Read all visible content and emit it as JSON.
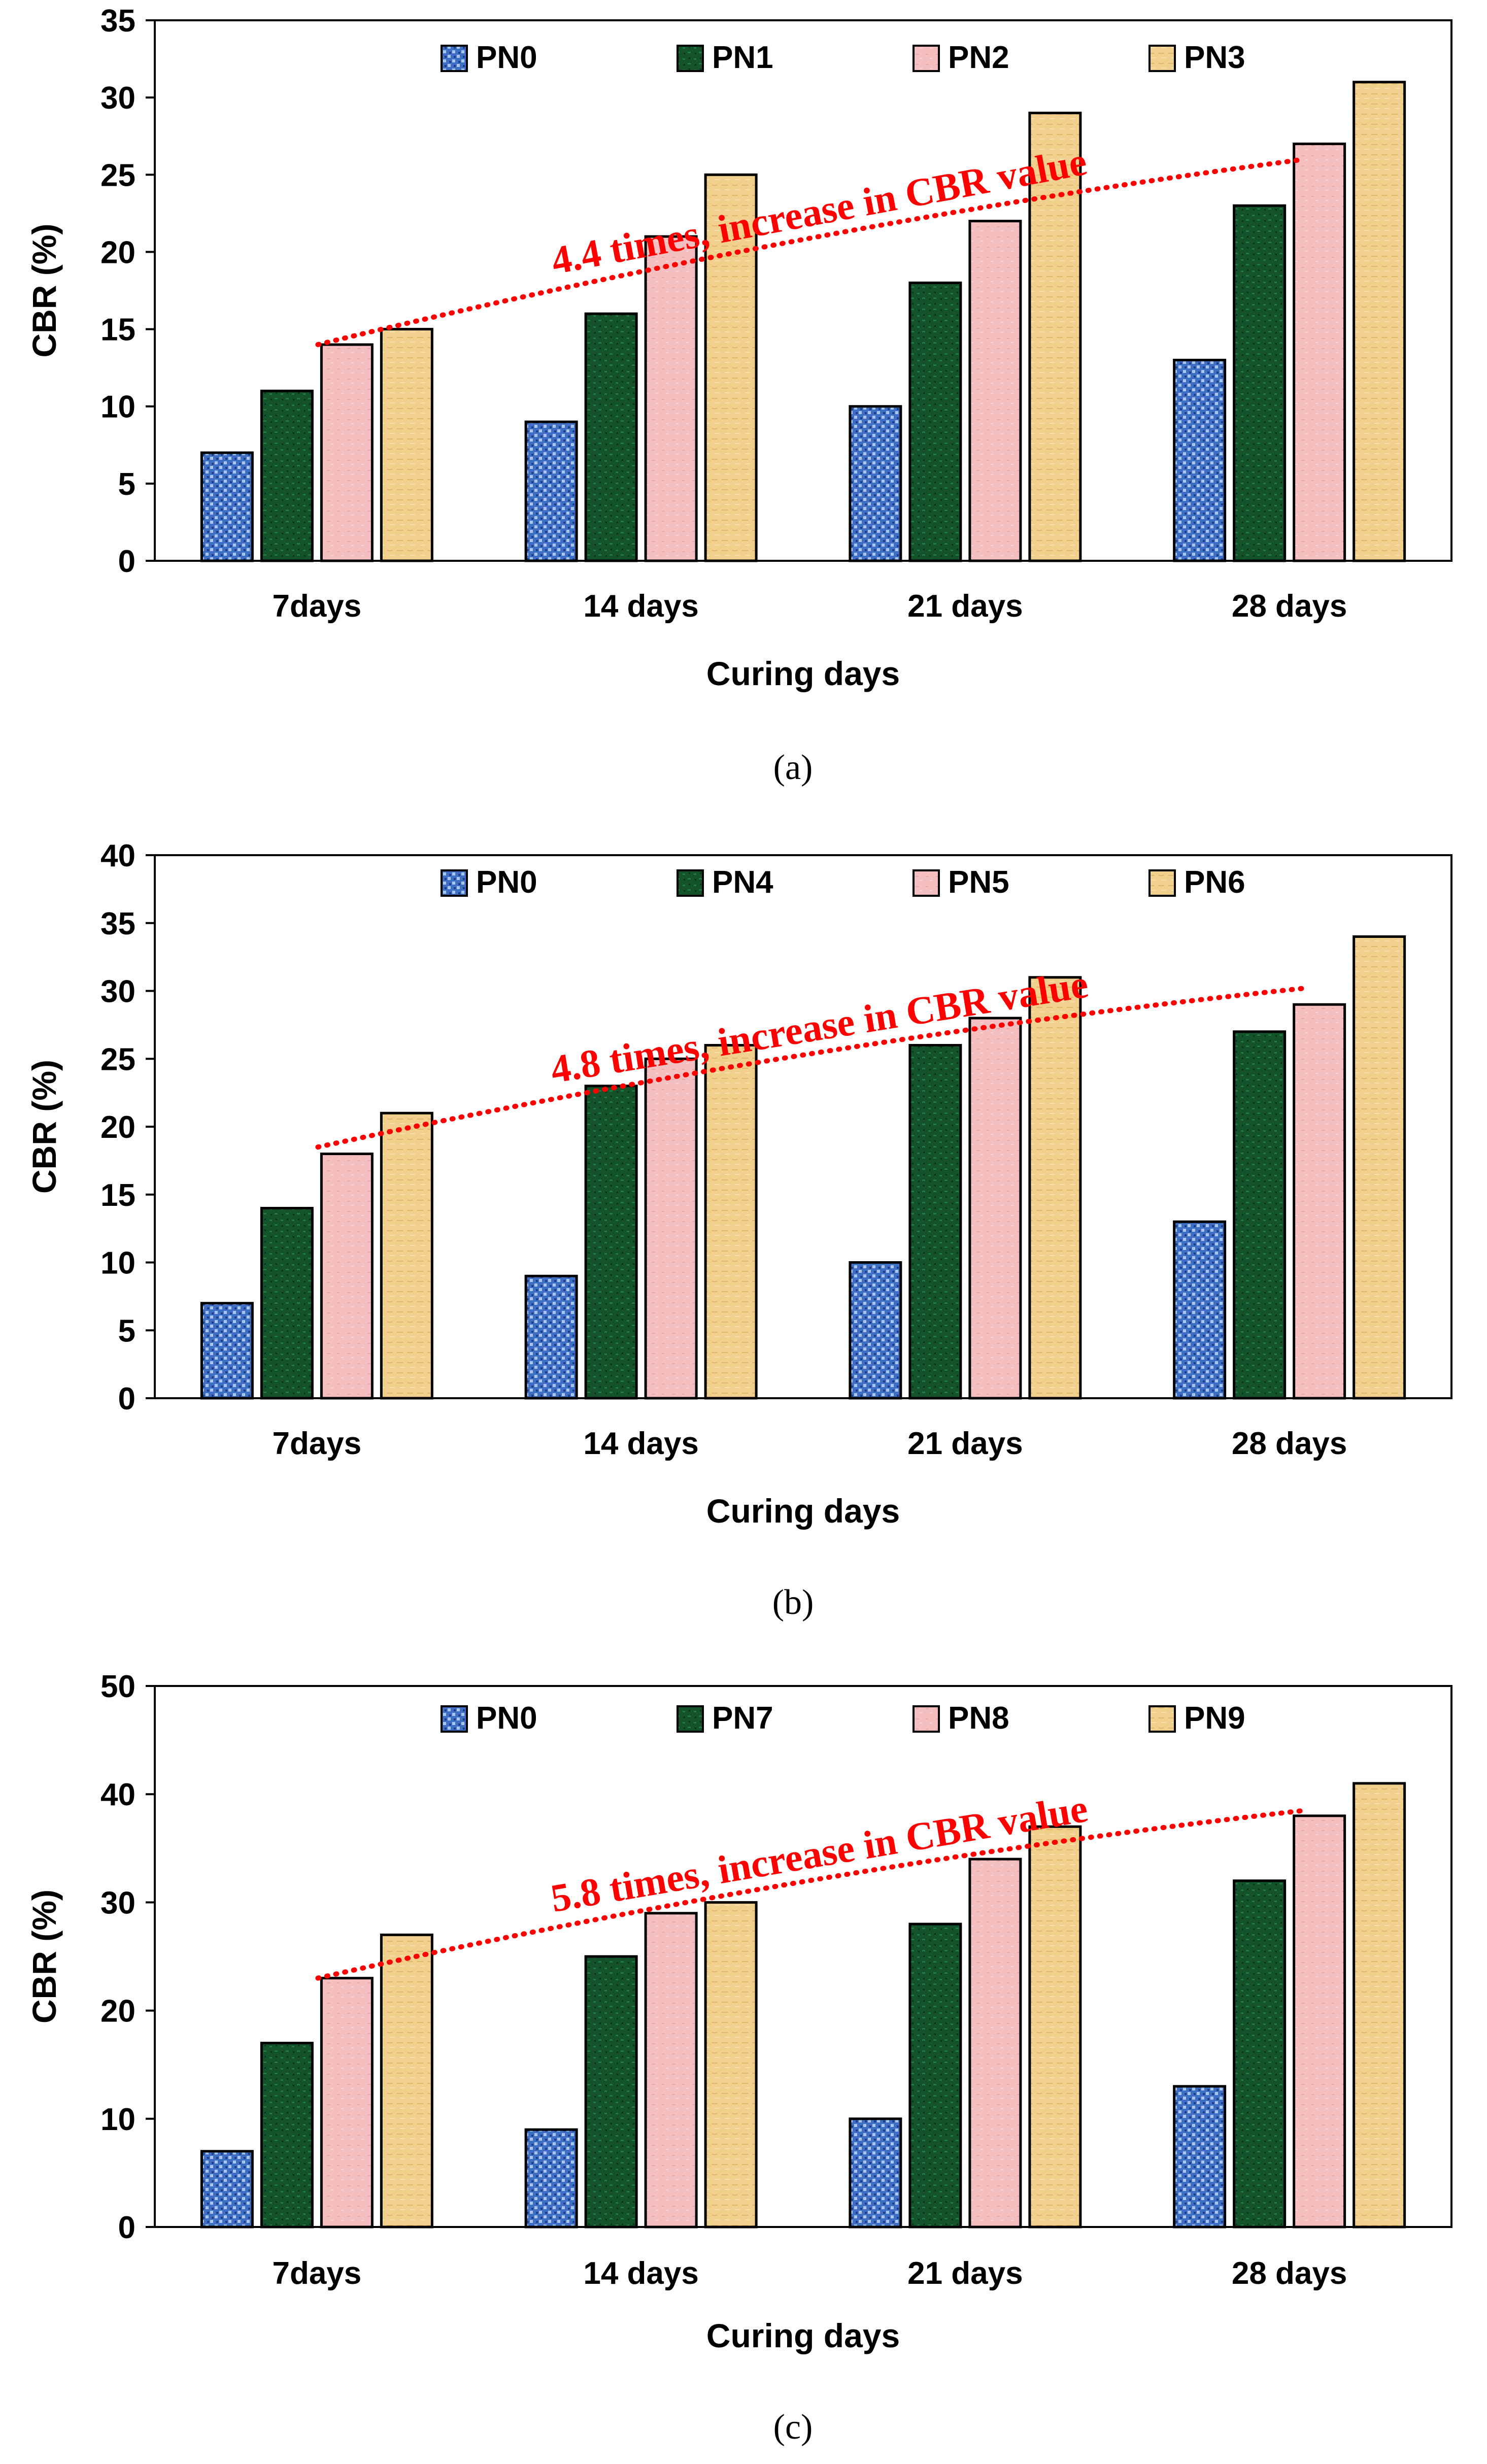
{
  "colors": {
    "PN0": "#3f6fc4",
    "green": "#14522c",
    "pink": "#f3bfc0",
    "yellow": "#f1cf8c",
    "trend": "#ff0000"
  },
  "chart_data": [
    {
      "type": "bar",
      "panel_label": "(a)",
      "xlabel": "Curing days",
      "ylabel": "CBR (%)",
      "ylim": [
        0,
        35
      ],
      "yticks": [
        0,
        5,
        10,
        15,
        20,
        25,
        30,
        35
      ],
      "categories": [
        "7days",
        "14 days",
        "21 days",
        "28 days"
      ],
      "series": [
        {
          "name": "PN0",
          "values": [
            7,
            9,
            10,
            13
          ]
        },
        {
          "name": "PN1",
          "values": [
            11,
            16,
            18,
            23
          ]
        },
        {
          "name": "PN2",
          "values": [
            14,
            21,
            22,
            27
          ]
        },
        {
          "name": "PN3",
          "values": [
            15,
            25,
            29,
            31
          ]
        }
      ],
      "annotation": {
        "text": "4.4 times, increase in CBR value",
        "trend_start": 14,
        "trend_end": 26
      }
    },
    {
      "type": "bar",
      "panel_label": "(b)",
      "xlabel": "Curing days",
      "ylabel": "CBR (%)",
      "ylim": [
        0,
        40
      ],
      "yticks": [
        0,
        5,
        10,
        15,
        20,
        25,
        30,
        35,
        40
      ],
      "categories": [
        "7days",
        "14 days",
        "21 days",
        "28 days"
      ],
      "series": [
        {
          "name": "PN0",
          "values": [
            7,
            9,
            10,
            13
          ]
        },
        {
          "name": "PN4",
          "values": [
            14,
            23,
            26,
            27
          ]
        },
        {
          "name": "PN5",
          "values": [
            18,
            25,
            28,
            29
          ]
        },
        {
          "name": "PN6",
          "values": [
            21,
            26,
            31,
            34
          ]
        }
      ],
      "annotation": {
        "text": "4.8 times, increase in CBR value",
        "trend_start": 18.5,
        "trend_end": 30.2
      }
    },
    {
      "type": "bar",
      "panel_label": "(c)",
      "xlabel": "Curing days",
      "ylabel": "CBR (%)",
      "ylim": [
        0,
        50
      ],
      "yticks": [
        0,
        10,
        20,
        30,
        40,
        50
      ],
      "categories": [
        "7days",
        "14 days",
        "21 days",
        "28 days"
      ],
      "series": [
        {
          "name": "PN0",
          "values": [
            7,
            9,
            10,
            13
          ]
        },
        {
          "name": "PN7",
          "values": [
            17,
            25,
            28,
            32
          ]
        },
        {
          "name": "PN8",
          "values": [
            23,
            29,
            34,
            38
          ]
        },
        {
          "name": "PN9",
          "values": [
            27,
            30,
            37,
            41
          ]
        }
      ],
      "annotation": {
        "text": "5.8 times, increase in CBR value",
        "trend_start": 23,
        "trend_end": 38.5
      }
    }
  ]
}
